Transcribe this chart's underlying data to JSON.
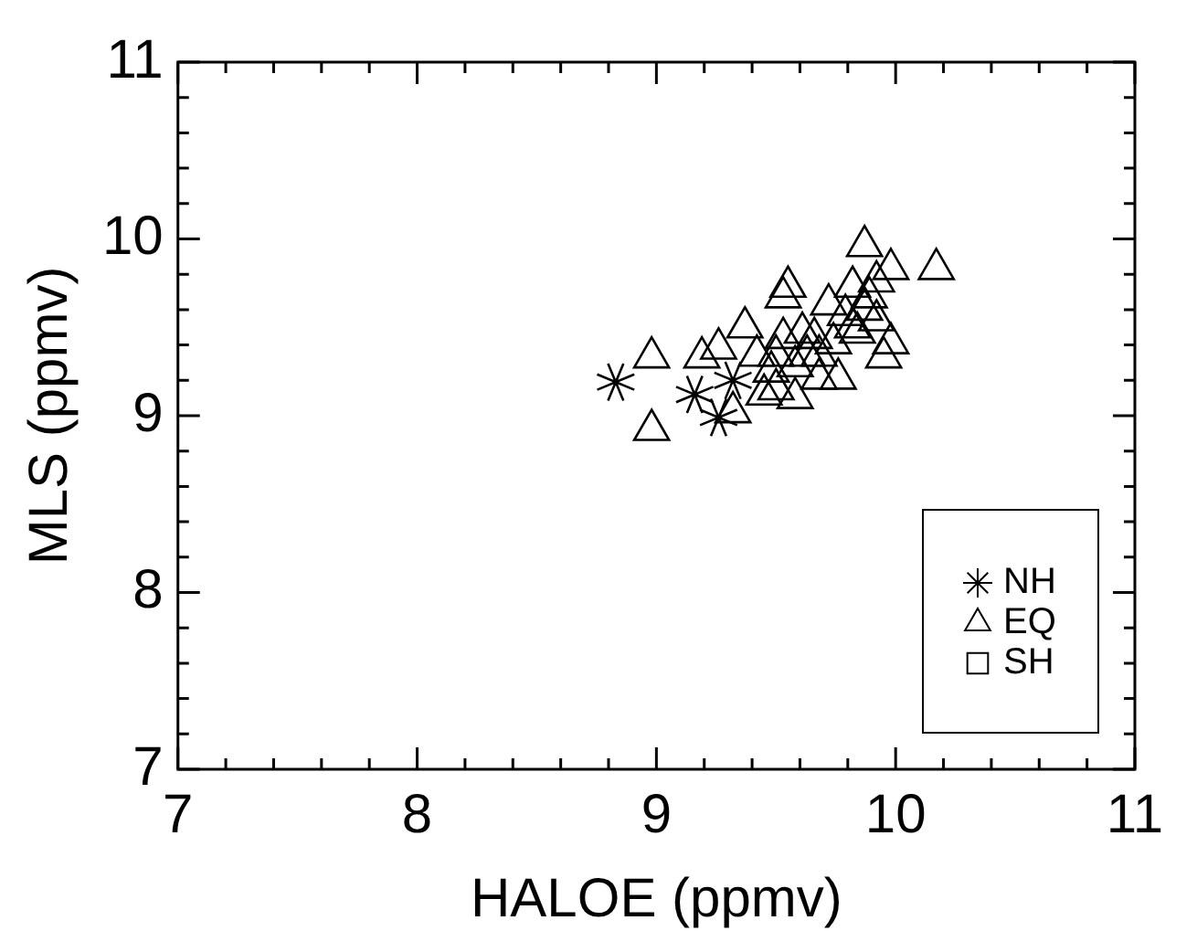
{
  "chart_data": {
    "type": "scatter",
    "xlabel": "HALOE (ppmv)",
    "ylabel": "MLS (ppmv)",
    "xlim": [
      7,
      11
    ],
    "ylim": [
      7,
      11
    ],
    "xticks": [
      7,
      {
        "value": 7.2,
        "label": null
      },
      {
        "value": 7.4,
        "label": null
      },
      {
        "value": 7.6,
        "label": null
      },
      {
        "value": 7.8,
        "label": null
      },
      8,
      {
        "value": 8.2,
        "label": null
      },
      {
        "value": 8.4,
        "label": null
      },
      {
        "value": 8.6,
        "label": null
      },
      {
        "value": 8.8,
        "label": null
      },
      9,
      {
        "value": 9.2,
        "label": null
      },
      {
        "value": 9.4,
        "label": null
      },
      {
        "value": 9.6,
        "label": null
      },
      {
        "value": 9.8,
        "label": null
      },
      10,
      {
        "value": 10.2,
        "label": null
      },
      {
        "value": 10.4,
        "label": null
      },
      {
        "value": 10.6,
        "label": null
      },
      {
        "value": 10.8,
        "label": null
      },
      11
    ],
    "yticks": [
      7,
      {
        "value": 7.2,
        "label": null
      },
      {
        "value": 7.4,
        "label": null
      },
      {
        "value": 7.6,
        "label": null
      },
      {
        "value": 7.8,
        "label": null
      },
      8,
      {
        "value": 8.2,
        "label": null
      },
      {
        "value": 8.4,
        "label": null
      },
      {
        "value": 8.6,
        "label": null
      },
      {
        "value": 8.8,
        "label": null
      },
      9,
      {
        "value": 9.2,
        "label": null
      },
      {
        "value": 9.4,
        "label": null
      },
      {
        "value": 9.6,
        "label": null
      },
      {
        "value": 9.8,
        "label": null
      },
      10,
      {
        "value": 10.2,
        "label": null
      },
      {
        "value": 10.4,
        "label": null
      },
      {
        "value": 10.6,
        "label": null
      },
      {
        "value": 10.8,
        "label": null
      },
      11
    ],
    "grid": false,
    "legend": "bottom right",
    "series": [
      {
        "name": "NH",
        "color": "#000000",
        "marker": "cross",
        "x": [
          8.83,
          9.16,
          9.32,
          9.26
        ],
        "values": [
          9.19,
          9.12,
          9.2,
          8.99
        ]
      },
      {
        "name": "EQ",
        "color": "#000000",
        "marker": "triangle",
        "x": [
          8.98,
          8.98,
          9.19,
          9.26,
          9.37,
          9.32,
          9.45,
          9.5,
          9.53,
          9.55,
          9.53,
          9.5,
          9.58,
          9.58,
          9.63,
          9.66,
          9.68,
          9.76,
          9.72,
          9.74,
          9.79,
          9.82,
          9.84,
          9.87,
          9.89,
          9.92,
          9.92,
          9.98,
          9.98,
          9.95,
          10.17,
          9.42,
          9.48,
          9.61,
          9.82,
          9.87,
          9.68
        ],
        "values": [
          9.33,
          8.92,
          9.33,
          9.38,
          9.5,
          9.02,
          9.12,
          9.15,
          9.67,
          9.73,
          9.44,
          9.34,
          9.28,
          9.1,
          9.34,
          9.44,
          9.21,
          9.21,
          9.63,
          9.41,
          9.57,
          9.73,
          9.47,
          9.96,
          9.67,
          9.76,
          9.54,
          9.83,
          9.41,
          9.33,
          9.83,
          9.34,
          9.25,
          9.47,
          9.5,
          9.6,
          9.34
        ]
      },
      {
        "name": "SH",
        "color": "#000000",
        "marker": "square"
      }
    ]
  }
}
